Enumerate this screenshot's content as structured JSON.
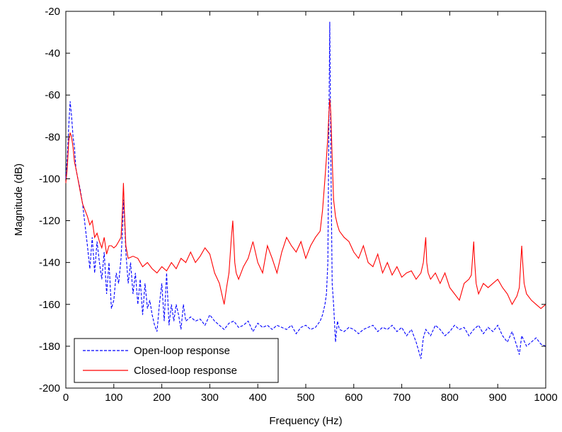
{
  "chart_data": {
    "type": "line",
    "title": "",
    "xlabel": "Frequency (Hz)",
    "ylabel": "Magnitude (dB)",
    "xlim": [
      0,
      1000
    ],
    "ylim": [
      -200,
      -20
    ],
    "xticks": [
      0,
      100,
      200,
      300,
      400,
      500,
      600,
      700,
      800,
      900,
      1000
    ],
    "yticks": [
      -200,
      -180,
      -160,
      -140,
      -120,
      -100,
      -80,
      -60,
      -40,
      -20
    ],
    "grid": false,
    "legend_position": "bottom-left",
    "series": [
      {
        "name": "Open-loop response",
        "color": "#0000ff",
        "style": "dashed",
        "x": [
          0,
          3,
          6,
          9,
          12,
          15,
          18,
          21,
          25,
          30,
          35,
          40,
          45,
          50,
          55,
          60,
          65,
          70,
          75,
          80,
          85,
          90,
          95,
          100,
          105,
          110,
          115,
          118,
          120,
          122,
          125,
          130,
          135,
          140,
          145,
          150,
          155,
          160,
          165,
          170,
          175,
          180,
          185,
          190,
          195,
          200,
          205,
          210,
          215,
          220,
          225,
          230,
          235,
          240,
          245,
          250,
          260,
          270,
          280,
          290,
          300,
          310,
          320,
          330,
          340,
          350,
          360,
          370,
          380,
          390,
          400,
          410,
          420,
          430,
          440,
          450,
          460,
          470,
          480,
          490,
          500,
          510,
          520,
          530,
          535,
          540,
          543,
          546,
          548,
          550,
          552,
          555,
          558,
          562,
          566,
          570,
          580,
          590,
          600,
          610,
          620,
          630,
          640,
          650,
          660,
          670,
          680,
          690,
          700,
          710,
          720,
          730,
          740,
          745,
          750,
          760,
          770,
          780,
          790,
          800,
          810,
          820,
          830,
          840,
          850,
          860,
          870,
          880,
          890,
          900,
          910,
          920,
          930,
          940,
          945,
          950,
          960,
          970,
          980,
          990,
          1000
        ],
        "y": [
          -100,
          -90,
          -75,
          -63,
          -70,
          -80,
          -85,
          -95,
          -100,
          -105,
          -112,
          -122,
          -132,
          -143,
          -128,
          -145,
          -130,
          -140,
          -148,
          -135,
          -155,
          -140,
          -162,
          -158,
          -145,
          -150,
          -138,
          -125,
          -110,
          -118,
          -135,
          -150,
          -140,
          -155,
          -145,
          -160,
          -148,
          -165,
          -150,
          -162,
          -158,
          -165,
          -170,
          -173,
          -160,
          -150,
          -168,
          -145,
          -170,
          -160,
          -168,
          -160,
          -165,
          -172,
          -160,
          -168,
          -166,
          -168,
          -167,
          -170,
          -165,
          -168,
          -170,
          -172,
          -169,
          -168,
          -171,
          -170,
          -168,
          -173,
          -169,
          -171,
          -170,
          -172,
          -170,
          -171,
          -172,
          -170,
          -174,
          -171,
          -170,
          -172,
          -171,
          -168,
          -165,
          -160,
          -155,
          -140,
          -80,
          -25,
          -85,
          -150,
          -160,
          -178,
          -168,
          -172,
          -173,
          -171,
          -172,
          -174,
          -172,
          -171,
          -170,
          -173,
          -171,
          -172,
          -170,
          -173,
          -171,
          -175,
          -172,
          -178,
          -186,
          -176,
          -172,
          -175,
          -170,
          -172,
          -175,
          -173,
          -170,
          -172,
          -171,
          -175,
          -172,
          -170,
          -174,
          -171,
          -173,
          -170,
          -175,
          -178,
          -173,
          -180,
          -184,
          -175,
          -180,
          -178,
          -176,
          -179,
          -180
        ]
      },
      {
        "name": "Closed-loop response",
        "color": "#ff0000",
        "style": "solid",
        "x": [
          0,
          3,
          6,
          9,
          12,
          15,
          18,
          21,
          25,
          30,
          35,
          40,
          45,
          50,
          55,
          60,
          65,
          70,
          75,
          80,
          85,
          90,
          95,
          100,
          105,
          110,
          115,
          118,
          120,
          122,
          125,
          130,
          140,
          150,
          160,
          170,
          180,
          190,
          200,
          210,
          220,
          230,
          240,
          250,
          260,
          270,
          280,
          290,
          300,
          310,
          320,
          330,
          335,
          340,
          345,
          348,
          350,
          352,
          355,
          360,
          370,
          380,
          390,
          400,
          410,
          420,
          430,
          440,
          450,
          460,
          470,
          480,
          490,
          500,
          510,
          520,
          530,
          535,
          540,
          543,
          546,
          548,
          550,
          552,
          555,
          558,
          562,
          566,
          570,
          580,
          590,
          600,
          610,
          620,
          630,
          640,
          650,
          660,
          670,
          680,
          690,
          700,
          710,
          720,
          730,
          740,
          745,
          750,
          752,
          755,
          760,
          770,
          780,
          790,
          800,
          810,
          820,
          830,
          840,
          845,
          850,
          852,
          855,
          860,
          870,
          880,
          890,
          900,
          910,
          920,
          930,
          940,
          945,
          950,
          952,
          955,
          960,
          970,
          980,
          990,
          1000
        ],
        "y": [
          -102,
          -95,
          -82,
          -78,
          -80,
          -85,
          -92,
          -95,
          -100,
          -106,
          -112,
          -115,
          -118,
          -122,
          -120,
          -128,
          -126,
          -130,
          -133,
          -128,
          -136,
          -132,
          -132,
          -133,
          -132,
          -130,
          -128,
          -115,
          -102,
          -115,
          -132,
          -138,
          -137,
          -138,
          -142,
          -140,
          -143,
          -145,
          -142,
          -144,
          -140,
          -143,
          -138,
          -140,
          -135,
          -140,
          -137,
          -133,
          -136,
          -145,
          -150,
          -160,
          -152,
          -145,
          -128,
          -120,
          -130,
          -140,
          -145,
          -148,
          -142,
          -138,
          -130,
          -140,
          -145,
          -132,
          -138,
          -145,
          -135,
          -128,
          -132,
          -135,
          -130,
          -138,
          -132,
          -128,
          -125,
          -115,
          -100,
          -90,
          -80,
          -70,
          -62,
          -68,
          -90,
          -110,
          -118,
          -122,
          -125,
          -128,
          -130,
          -135,
          -138,
          -132,
          -140,
          -142,
          -136,
          -145,
          -140,
          -146,
          -142,
          -147,
          -145,
          -144,
          -148,
          -145,
          -140,
          -128,
          -140,
          -145,
          -148,
          -145,
          -150,
          -145,
          -152,
          -155,
          -158,
          -150,
          -148,
          -146,
          -130,
          -140,
          -150,
          -155,
          -150,
          -152,
          -150,
          -148,
          -152,
          -155,
          -160,
          -156,
          -152,
          -132,
          -140,
          -150,
          -155,
          -158,
          -160,
          -162,
          -160
        ]
      }
    ]
  }
}
